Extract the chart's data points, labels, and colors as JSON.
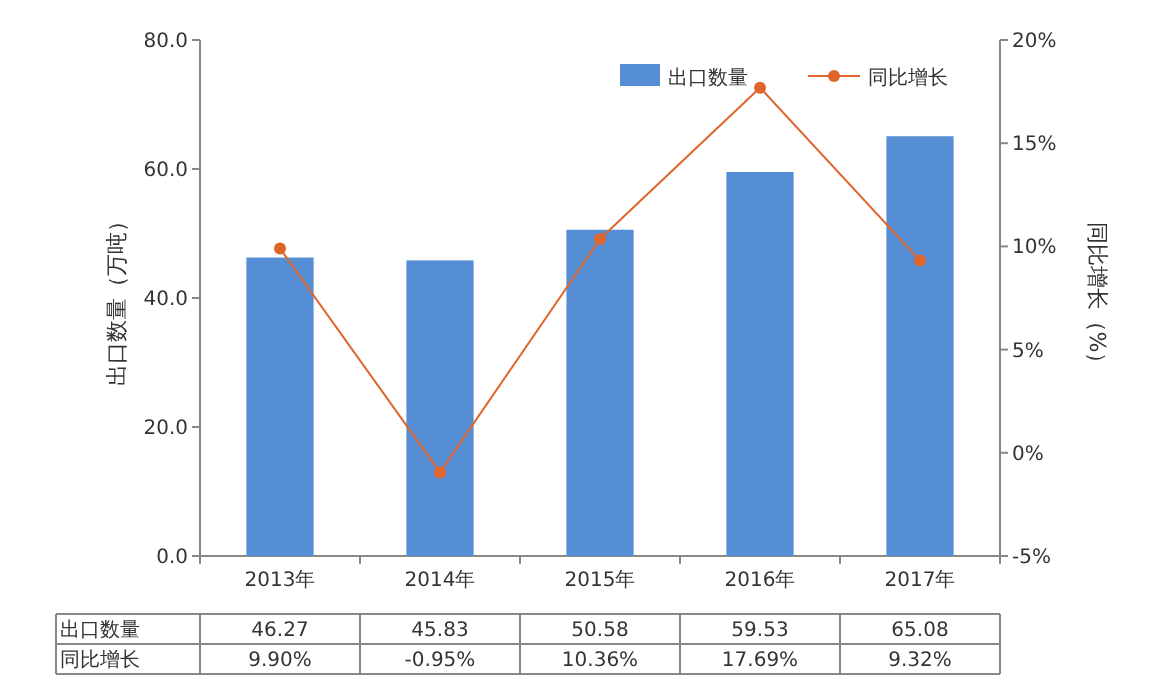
{
  "chart_data": {
    "type": "bar",
    "categories": [
      "2013年",
      "2014年",
      "2015年",
      "2016年",
      "2017年"
    ],
    "ylabel": "出口数量（万吨）",
    "y2label": "同比增长（%）",
    "ylim": [
      0,
      80
    ],
    "yticks": [
      {
        "value": 0,
        "label": "0.0"
      },
      {
        "value": 20,
        "label": "20.0"
      },
      {
        "value": 40,
        "label": "40.0"
      },
      {
        "value": 60,
        "label": "60.0"
      },
      {
        "value": 80,
        "label": "80.0"
      }
    ],
    "y2lim": [
      -5,
      20
    ],
    "y2ticks": [
      {
        "value": -5,
        "label": "-5%"
      },
      {
        "value": 0,
        "label": "0%"
      },
      {
        "value": 5,
        "label": "5%"
      },
      {
        "value": 10,
        "label": "10%"
      },
      {
        "value": 15,
        "label": "15%"
      },
      {
        "value": 20,
        "label": "20%"
      }
    ],
    "legend": "top right",
    "grid": false,
    "series": [
      {
        "name": "出口数量",
        "color": "#558ed5",
        "values": [
          46.27,
          45.83,
          50.58,
          59.53,
          65.08
        ],
        "value_labels": [
          "46.27",
          "45.83",
          "50.58",
          "59.53",
          "65.08"
        ]
      },
      {
        "name": "同比增长",
        "type": "line",
        "axis": "y2",
        "color": "#e0652a",
        "marker": "circle",
        "values": [
          9.9,
          -0.95,
          10.36,
          17.69,
          9.32
        ],
        "value_labels": [
          "9.90%",
          "-0.95%",
          "10.36%",
          "17.69%",
          "9.32%"
        ]
      }
    ]
  }
}
